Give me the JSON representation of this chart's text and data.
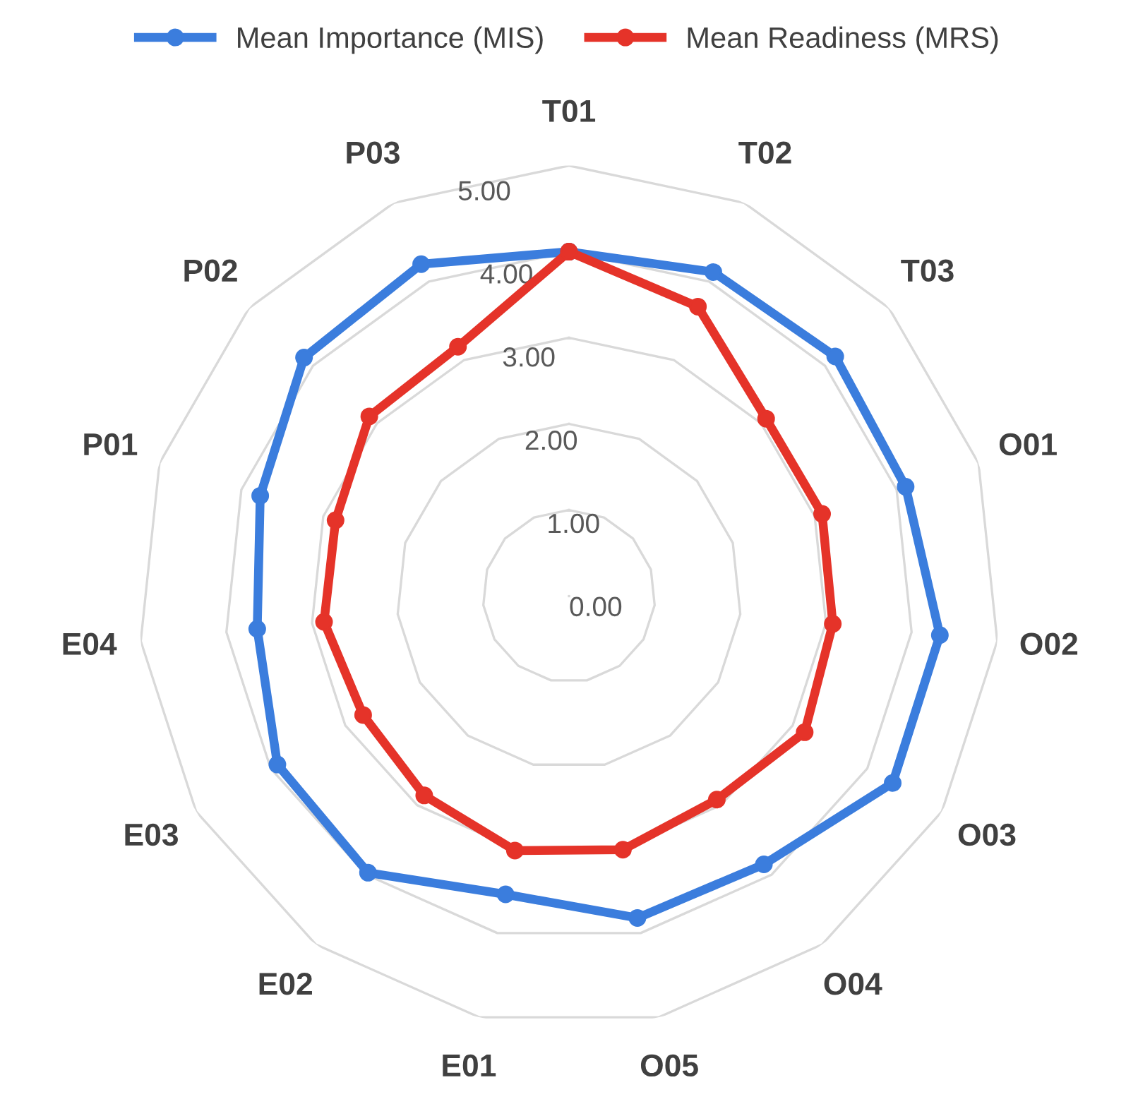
{
  "chart_data": {
    "type": "radar",
    "categories": [
      "T01",
      "T02",
      "T03",
      "O01",
      "O02",
      "O03",
      "O04",
      "O05",
      "E01",
      "E02",
      "E03",
      "E04",
      "P01",
      "P02",
      "P03"
    ],
    "series": [
      {
        "name": "Mean Importance (MIS)",
        "color": "#3b7ddd",
        "values": [
          4.0,
          4.12,
          4.16,
          4.11,
          4.33,
          4.34,
          3.85,
          3.82,
          3.54,
          3.97,
          3.91,
          3.64,
          3.77,
          4.14,
          4.22
        ]
      },
      {
        "name": "Mean Readiness (MRS)",
        "color": "#e53329",
        "values": [
          4.0,
          3.68,
          3.08,
          3.09,
          3.08,
          3.16,
          2.92,
          3.01,
          3.02,
          2.86,
          2.76,
          2.86,
          2.85,
          3.12,
          3.17
        ]
      }
    ],
    "ylim": [
      0,
      5
    ],
    "yticks": [
      {
        "value": 0,
        "label": "0.00"
      },
      {
        "value": 1,
        "label": "1.00"
      },
      {
        "value": 2,
        "label": "2.00"
      },
      {
        "value": 3,
        "label": "3.00"
      },
      {
        "value": 4,
        "label": "4.00"
      },
      {
        "value": 5,
        "label": "5.00"
      }
    ],
    "grid": true,
    "legend": "top",
    "marker": "circle",
    "line_style": "solid"
  }
}
